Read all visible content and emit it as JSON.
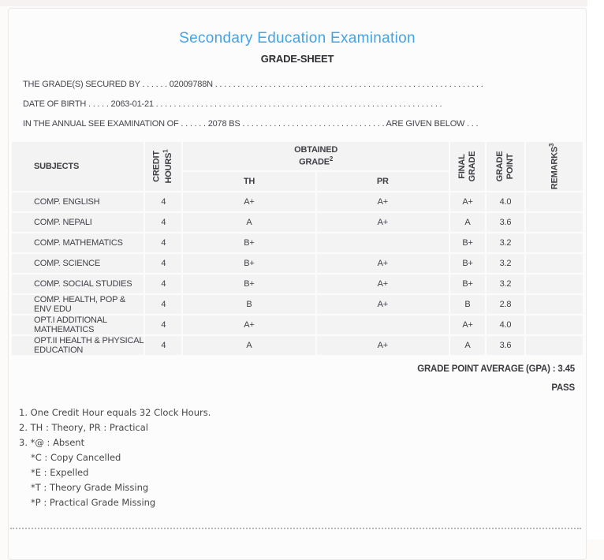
{
  "page": {
    "title": "Secondary Education Examination",
    "subtitle": "GRADE-SHEET",
    "accent_color": "#46a3e0",
    "text_color": "#3f3f46",
    "cell_bg_color": "#f4f3f3"
  },
  "meta": {
    "line1": {
      "label": "THE GRADE(S) SECURED BY",
      "dots_before": " . . . . . . ",
      "value": "02009788N",
      "dots_after": " . . . . . . . . . . . . . . . . . . . . . . . . . . . . . . . . . . . . . . . . . . . . . . . . . . . . . . . . . . . ."
    },
    "line2": {
      "label": "DATE OF BIRTH",
      "dots_before": " . . . . . ",
      "value": "2063-01-21",
      "dots_after": " . . . . . . . . . . . . . . . . . . . . . . . . . . . . . . . . . . . . . . . . . . . . . . . . . . . . . . . . . . . . . . . ."
    },
    "line3": {
      "label": "IN THE ANNUAL SEE EXAMINATION OF",
      "dots_before": " . . . . . . ",
      "value": "2078 BS",
      "dots_mid": " . . . . . . . . . . . . . . . . . . . . . . . . . . . . . . . . ",
      "suffix": "ARE GIVEN BELOW . . ."
    }
  },
  "table": {
    "header": {
      "subjects": "SUBJECTS",
      "credit": {
        "label": "CREDIT HOURS",
        "sup": "1"
      },
      "obtained": {
        "label": "OBTAINED GRADE",
        "sup": "2"
      },
      "th": "TH",
      "pr": "PR",
      "final": {
        "label": "FINAL GRADE"
      },
      "grade_point": {
        "label": "GRADE POINT"
      },
      "remarks": {
        "label": "REMARKS",
        "sup": "3"
      }
    },
    "rows": [
      {
        "subject": "COMP. ENGLISH",
        "credit": "4",
        "th": "A+",
        "pr": "A+",
        "final": "A+",
        "gp": "4.0",
        "remarks": ""
      },
      {
        "subject": "COMP. NEPALI",
        "credit": "4",
        "th": "A",
        "pr": "A+",
        "final": "A",
        "gp": "3.6",
        "remarks": ""
      },
      {
        "subject": "COMP. MATHEMATICS",
        "credit": "4",
        "th": "B+",
        "pr": "",
        "final": "B+",
        "gp": "3.2",
        "remarks": ""
      },
      {
        "subject": "COMP. SCIENCE",
        "credit": "4",
        "th": "B+",
        "pr": "A+",
        "final": "B+",
        "gp": "3.2",
        "remarks": ""
      },
      {
        "subject": "COMP. SOCIAL STUDIES",
        "credit": "4",
        "th": "B+",
        "pr": "A+",
        "final": "B+",
        "gp": "3.2",
        "remarks": ""
      },
      {
        "subject": "COMP. HEALTH, POP & ENV EDU",
        "credit": "4",
        "th": "B",
        "pr": "A+",
        "final": "B",
        "gp": "2.8",
        "remarks": ""
      },
      {
        "subject": "OPT.I ADDITIONAL MATHEMATICS",
        "credit": "4",
        "th": "A+",
        "pr": "",
        "final": "A+",
        "gp": "4.0",
        "remarks": ""
      },
      {
        "subject": "OPT.II HEALTH & PHYSICAL EDUCATION",
        "credit": "4",
        "th": "A",
        "pr": "A+",
        "final": "A",
        "gp": "3.6",
        "remarks": ""
      }
    ]
  },
  "summary": {
    "gpa_label": "GRADE POINT AVERAGE (GPA)",
    "separator": " : ",
    "gpa_value": "3.45",
    "result": "PASS"
  },
  "footnotes": [
    {
      "text": "1. One Credit Hour equals 32 Clock Hours."
    },
    {
      "text": "2. TH : Theory, PR : Practical"
    },
    {
      "text": "3. *@ : Absent"
    },
    {
      "text": "*C : Copy Cancelled",
      "indent": true
    },
    {
      "text": "*E : Expelled",
      "indent": true
    },
    {
      "text": "*T : Theory Grade Missing",
      "indent": true
    },
    {
      "text": "*P : Practical Grade Missing",
      "indent": true
    }
  ]
}
